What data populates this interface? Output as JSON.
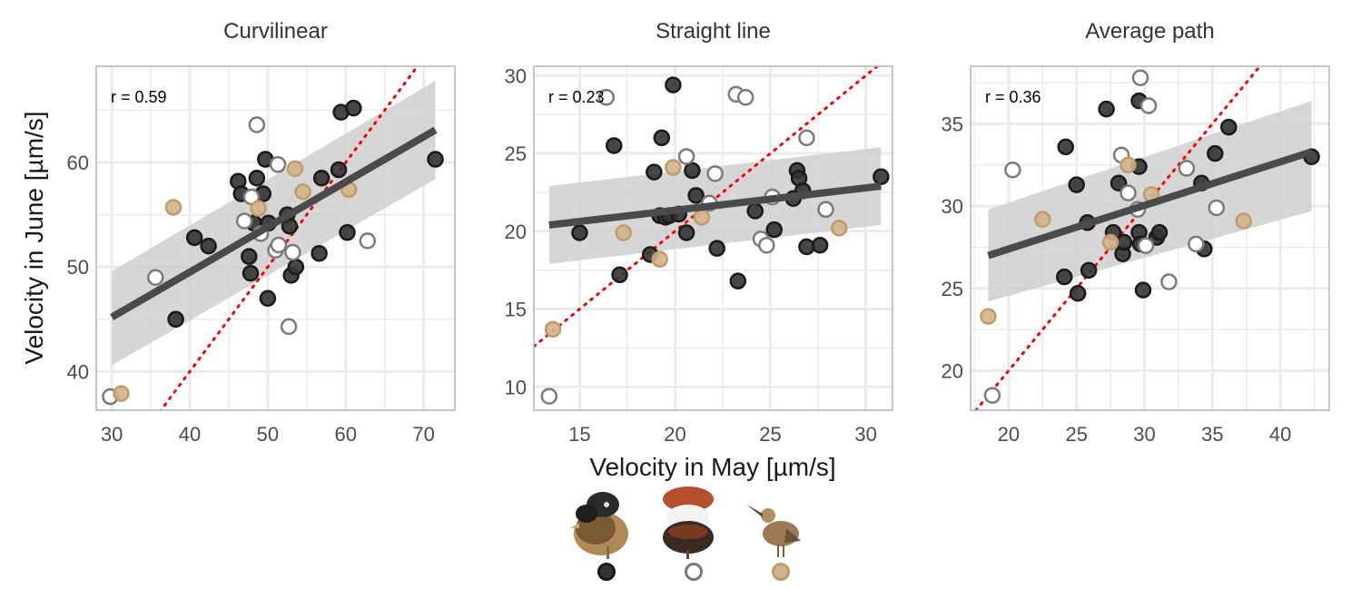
{
  "colors": {
    "dark": "#333333",
    "open": "#7a7a7a",
    "tan": "#d2b48c",
    "tan_stroke": "#c29a6a",
    "fit": "#4a4a4a",
    "band": "#cfcfcf",
    "identity": "#ff0000",
    "grid": "#ebebeb",
    "border": "#b3b3b3"
  },
  "axes": {
    "xlabel": "Velocity in May [µm/s]",
    "ylabel": "Velocity in June [µm/s]"
  },
  "legend": {
    "items": [
      {
        "group": "dark",
        "icon": "ruff-dark-male-icon"
      },
      {
        "group": "open",
        "icon": "ruff-white-male-icon"
      },
      {
        "group": "tan",
        "icon": "ruff-female-bird-icon"
      }
    ]
  },
  "chart_data": [
    {
      "type": "scatter",
      "title": "Curvilinear",
      "annotation": "r = 0.59",
      "xlim": [
        28,
        74
      ],
      "ylim": [
        36.3,
        69.2
      ],
      "xticks": [
        30,
        40,
        50,
        60,
        70
      ],
      "yticks": [
        40,
        50,
        60
      ],
      "fit": {
        "x": [
          30,
          71.5
        ],
        "y": [
          45.2,
          63.1
        ],
        "lower": [
          40.6,
          58.4
        ],
        "upper": [
          49.6,
          67.8
        ]
      },
      "series": [
        {
          "group": "dark",
          "points": [
            [
              38.2,
              45.0
            ],
            [
              40.6,
              52.8
            ],
            [
              42.4,
              52.0
            ],
            [
              46.2,
              58.2
            ],
            [
              46.6,
              57.0
            ],
            [
              47.6,
              51.0
            ],
            [
              47.8,
              49.4
            ],
            [
              48.2,
              54.2
            ],
            [
              48.6,
              58.5
            ],
            [
              49.4,
              57.0
            ],
            [
              49.7,
              60.3
            ],
            [
              50.0,
              47.0
            ],
            [
              50.1,
              54.2
            ],
            [
              52.5,
              55.0
            ],
            [
              52.8,
              53.9
            ],
            [
              53.0,
              49.2
            ],
            [
              53.6,
              50.0
            ],
            [
              56.6,
              51.3
            ],
            [
              56.9,
              58.5
            ],
            [
              59.1,
              59.3
            ],
            [
              59.4,
              64.8
            ],
            [
              60.2,
              53.3
            ],
            [
              61.0,
              65.2
            ],
            [
              71.5,
              60.3
            ]
          ]
        },
        {
          "group": "open",
          "points": [
            [
              29.8,
              37.6
            ],
            [
              35.6,
              49.0
            ],
            [
              47.0,
              54.4
            ],
            [
              47.9,
              56.7
            ],
            [
              48.6,
              63.6
            ],
            [
              49.1,
              53.2
            ],
            [
              51.0,
              51.6
            ],
            [
              51.3,
              59.8
            ],
            [
              51.4,
              52.1
            ],
            [
              52.7,
              44.3
            ],
            [
              53.2,
              51.4
            ],
            [
              62.8,
              52.5
            ]
          ]
        },
        {
          "group": "tan",
          "points": [
            [
              31.2,
              37.9
            ],
            [
              37.9,
              55.7
            ],
            [
              48.8,
              55.6
            ],
            [
              53.5,
              59.4
            ],
            [
              54.5,
              57.2
            ],
            [
              60.4,
              57.4
            ]
          ]
        }
      ]
    },
    {
      "type": "scatter",
      "title": "Straight line",
      "annotation": "r = 0.23",
      "xlim": [
        12.6,
        31.4
      ],
      "ylim": [
        8.5,
        30.6
      ],
      "xticks": [
        15,
        20,
        25,
        30
      ],
      "yticks": [
        10,
        15,
        20,
        25,
        30
      ],
      "fit": {
        "x": [
          13.4,
          30.8
        ],
        "y": [
          20.4,
          22.9
        ],
        "lower": [
          17.9,
          20.4
        ],
        "upper": [
          22.9,
          25.4
        ]
      },
      "series": [
        {
          "group": "dark",
          "points": [
            [
              15.0,
              19.9
            ],
            [
              16.8,
              25.5
            ],
            [
              17.1,
              17.2
            ],
            [
              18.7,
              18.5
            ],
            [
              18.9,
              23.8
            ],
            [
              19.2,
              21.0
            ],
            [
              19.3,
              26.0
            ],
            [
              19.5,
              20.9
            ],
            [
              19.7,
              21.0
            ],
            [
              19.9,
              29.4
            ],
            [
              20.2,
              21.1
            ],
            [
              20.6,
              19.9
            ],
            [
              20.9,
              23.9
            ],
            [
              21.1,
              22.3
            ],
            [
              22.2,
              18.9
            ],
            [
              23.3,
              16.8
            ],
            [
              24.2,
              21.3
            ],
            [
              25.2,
              20.1
            ],
            [
              26.2,
              22.1
            ],
            [
              26.4,
              23.9
            ],
            [
              26.5,
              23.4
            ],
            [
              26.7,
              22.6
            ],
            [
              26.9,
              19.0
            ],
            [
              27.6,
              19.1
            ],
            [
              30.8,
              23.5
            ]
          ]
        },
        {
          "group": "open",
          "points": [
            [
              13.4,
              9.4
            ],
            [
              16.4,
              28.6
            ],
            [
              20.6,
              24.8
            ],
            [
              21.8,
              21.8
            ],
            [
              22.1,
              23.7
            ],
            [
              23.2,
              28.8
            ],
            [
              23.7,
              28.6
            ],
            [
              24.5,
              19.5
            ],
            [
              24.8,
              19.1
            ],
            [
              25.1,
              22.2
            ],
            [
              26.9,
              26.0
            ],
            [
              27.9,
              21.4
            ]
          ]
        },
        {
          "group": "tan",
          "points": [
            [
              13.6,
              13.7
            ],
            [
              17.3,
              19.9
            ],
            [
              19.2,
              18.2
            ],
            [
              19.9,
              24.1
            ],
            [
              21.4,
              20.9
            ],
            [
              28.6,
              20.2
            ]
          ]
        }
      ]
    },
    {
      "type": "scatter",
      "title": "Average path",
      "annotation": "r = 0.36",
      "xlim": [
        17.2,
        43.6
      ],
      "ylim": [
        17.6,
        38.5
      ],
      "xticks": [
        20,
        25,
        30,
        35,
        40
      ],
      "yticks": [
        20,
        25,
        30,
        35
      ],
      "fit": {
        "x": [
          18.5,
          42.3
        ],
        "y": [
          27.0,
          33.3
        ],
        "lower": [
          24.2,
          29.7
        ],
        "upper": [
          29.8,
          36.4
        ]
      },
      "series": [
        {
          "group": "dark",
          "points": [
            [
              24.1,
              25.7
            ],
            [
              24.2,
              33.6
            ],
            [
              25.0,
              31.3
            ],
            [
              25.1,
              24.7
            ],
            [
              25.9,
              26.1
            ],
            [
              25.8,
              29.0
            ],
            [
              27.2,
              35.9
            ],
            [
              27.7,
              28.4
            ],
            [
              28.1,
              31.4
            ],
            [
              28.4,
              27.1
            ],
            [
              28.5,
              27.8
            ],
            [
              29.6,
              32.4
            ],
            [
              29.6,
              28.4
            ],
            [
              29.7,
              27.7
            ],
            [
              29.6,
              36.4
            ],
            [
              29.9,
              24.9
            ],
            [
              30.9,
              28.1
            ],
            [
              31.1,
              28.4
            ],
            [
              34.2,
              31.4
            ],
            [
              34.4,
              27.4
            ],
            [
              35.2,
              33.2
            ],
            [
              36.2,
              34.8
            ],
            [
              42.3,
              33.0
            ]
          ]
        },
        {
          "group": "open",
          "points": [
            [
              18.8,
              18.5
            ],
            [
              20.3,
              32.2
            ],
            [
              28.3,
              33.1
            ],
            [
              28.8,
              30.8
            ],
            [
              29.5,
              29.8
            ],
            [
              29.7,
              37.8
            ],
            [
              30.1,
              27.6
            ],
            [
              30.3,
              36.1
            ],
            [
              31.8,
              25.4
            ],
            [
              33.1,
              32.3
            ],
            [
              33.8,
              27.7
            ],
            [
              35.3,
              29.9
            ]
          ]
        },
        {
          "group": "tan",
          "points": [
            [
              18.5,
              23.3
            ],
            [
              22.5,
              29.2
            ],
            [
              27.5,
              27.8
            ],
            [
              28.8,
              32.5
            ],
            [
              30.5,
              30.7
            ],
            [
              37.3,
              29.1
            ]
          ]
        }
      ]
    }
  ]
}
